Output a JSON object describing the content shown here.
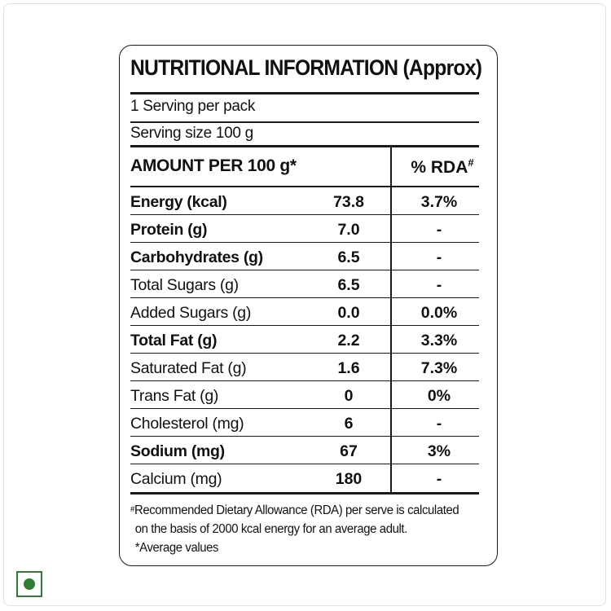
{
  "panel": {
    "title": "NUTRITIONAL INFORMATION (Approx)",
    "servings_per_pack": "1 Serving per pack",
    "serving_size": "Serving size 100 g",
    "amount_header": "AMOUNT PER 100 g*",
    "rda_header": "% RDA",
    "rda_header_mark": "#"
  },
  "nutrients": [
    {
      "name": "Energy (kcal)",
      "value": "73.8",
      "rda": "3.7%",
      "bold": true
    },
    {
      "name": "Protein (g)",
      "value": "7.0",
      "rda": "-",
      "bold": true
    },
    {
      "name": "Carbohydrates (g)",
      "value": "6.5",
      "rda": "-",
      "bold": true
    },
    {
      "name": "Total Sugars (g)",
      "value": "6.5",
      "rda": "-",
      "bold": false
    },
    {
      "name": "Added Sugars (g)",
      "value": "0.0",
      "rda": "0.0%",
      "bold": false
    },
    {
      "name": "Total Fat (g)",
      "value": "2.2",
      "rda": "3.3%",
      "bold": true
    },
    {
      "name": "Saturated Fat (g)",
      "value": "1.6",
      "rda": "7.3%",
      "bold": false
    },
    {
      "name": "Trans Fat (g)",
      "value": "0",
      "rda": "0%",
      "bold": false
    },
    {
      "name": "Cholesterol (mg)",
      "value": "6",
      "rda": "-",
      "bold": false
    },
    {
      "name": "Sodium (mg)",
      "value": "67",
      "rda": "3%",
      "bold": true
    },
    {
      "name": "Calcium (mg)",
      "value": "180",
      "rda": "-",
      "bold": false
    }
  ],
  "footnote": {
    "mark": "#",
    "line1": "Recommended Dietary Allowance (RDA) per serve is calculated",
    "line2": "on the basis of 2000 kcal energy for an average adult.",
    "line3": "*Average values"
  },
  "veg_mark": {
    "icon": "veg-symbol-icon",
    "color": "#2e7d32"
  }
}
